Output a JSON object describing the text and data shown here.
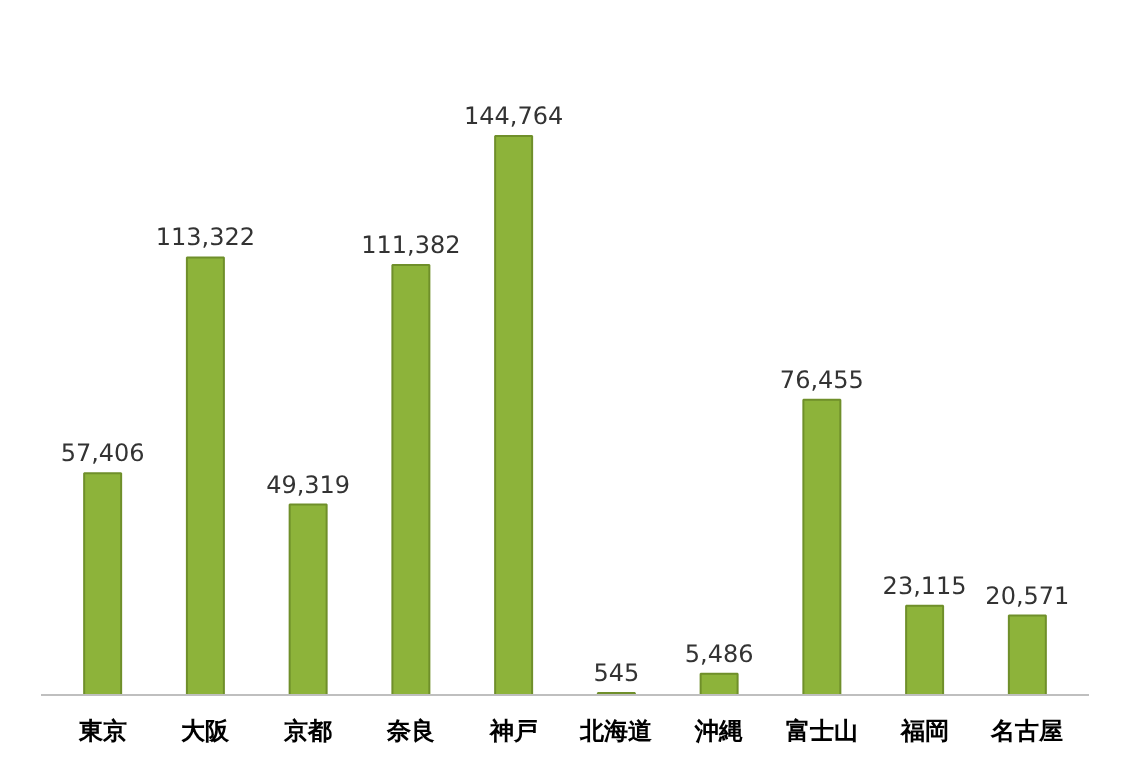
{
  "chart_data": {
    "type": "bar",
    "categories": [
      "東京",
      "大阪",
      "京都",
      "奈良",
      "神戸",
      "北海道",
      "沖縄",
      "富士山",
      "福岡",
      "名古屋"
    ],
    "values": [
      57406,
      113322,
      49319,
      111382,
      144764,
      545,
      5486,
      76455,
      23115,
      20571
    ],
    "value_labels": [
      "57,406",
      "113,322",
      "49,319",
      "111,382",
      "144,764",
      "545",
      "5,486",
      "76,455",
      "23,115",
      "20,571"
    ],
    "color": "#8db33a"
  }
}
